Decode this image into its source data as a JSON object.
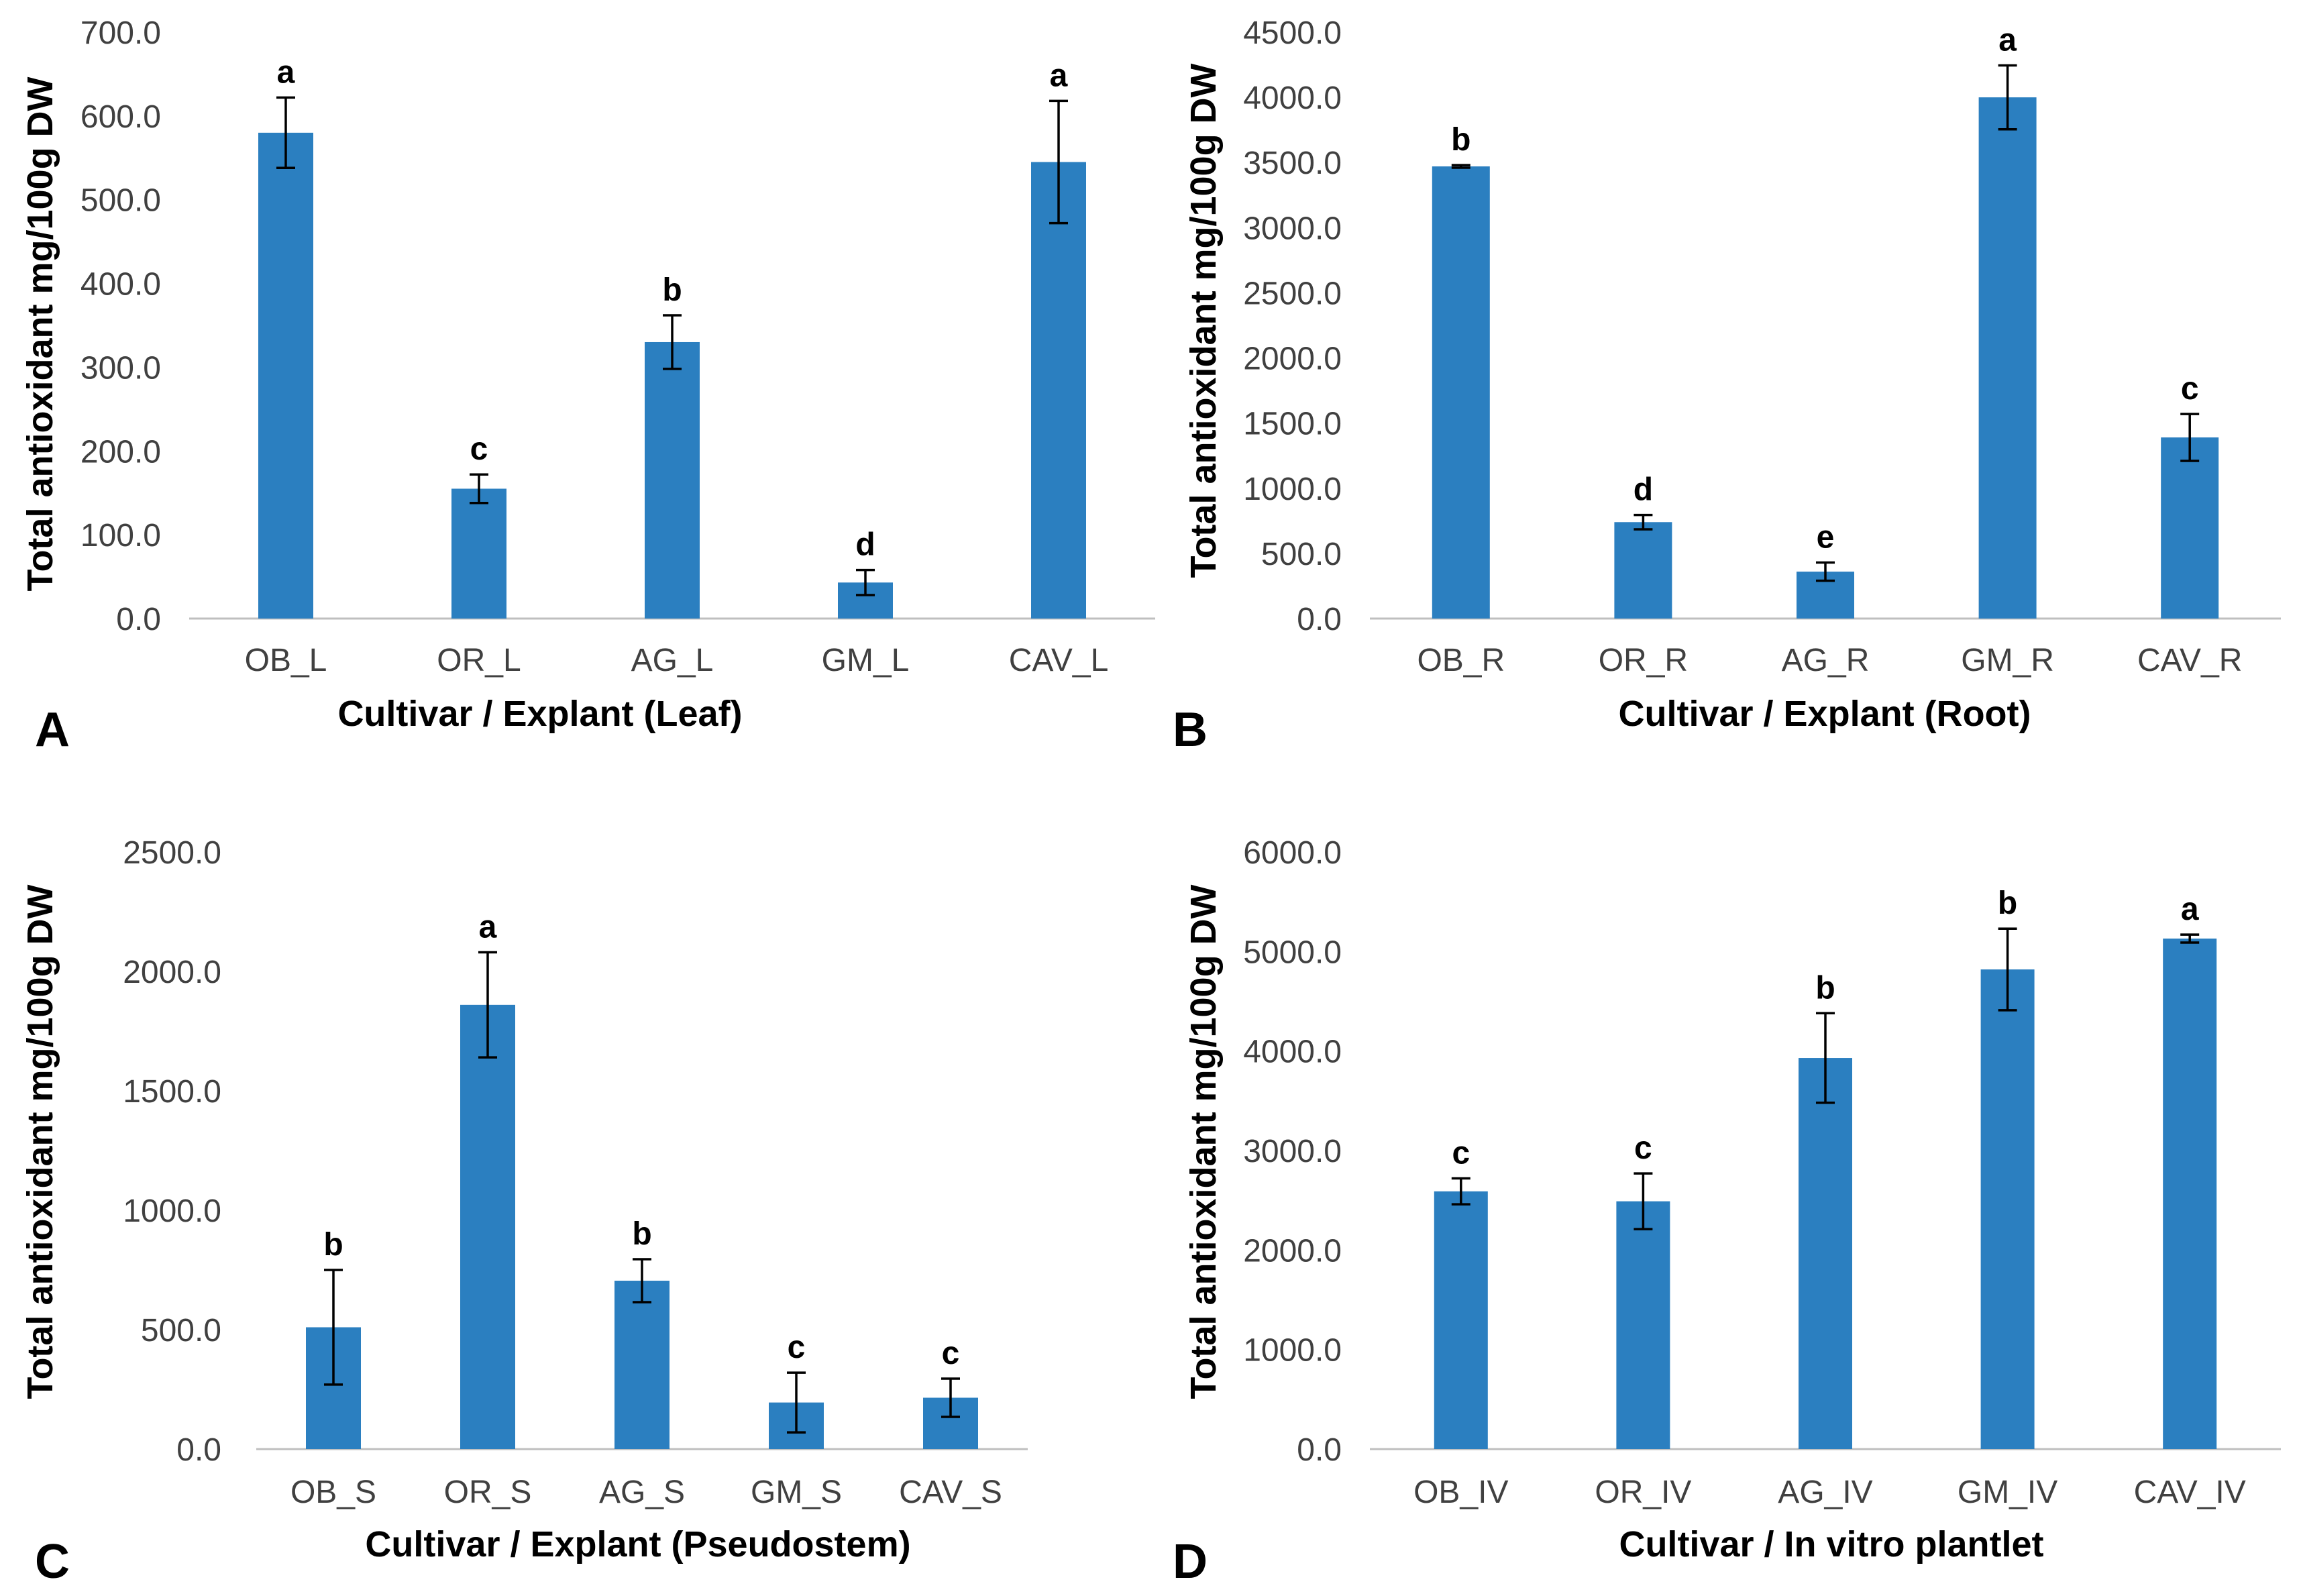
{
  "figure": {
    "colors": {
      "bar": "#2b7fc0",
      "axis": "#bfbfbf",
      "error_bar": "#000000"
    }
  },
  "chart_data": [
    {
      "panel": "A",
      "type": "bar",
      "categories": [
        "OB_L",
        "OR_L",
        "AG_L",
        "GM_L",
        "CAV_L"
      ],
      "values": [
        580,
        155,
        330,
        43,
        545
      ],
      "errors": [
        42,
        17,
        32,
        15,
        73
      ],
      "significance": [
        "a",
        "c",
        "b",
        "d",
        "a"
      ],
      "xlabel": "Cultivar / Explant (Leaf)",
      "ylabel": "Total antioxidant mg/100g DW",
      "ylim": [
        0,
        700
      ],
      "yticks": [
        "0.0",
        "100.0",
        "200.0",
        "300.0",
        "400.0",
        "500.0",
        "600.0",
        "700.0"
      ],
      "grid": false,
      "legend": "none"
    },
    {
      "panel": "B",
      "type": "bar",
      "categories": [
        "OB_R",
        "OR_R",
        "AG_R",
        "GM_R",
        "CAV_R"
      ],
      "values": [
        3470,
        740,
        360,
        4000,
        1390
      ],
      "errors": [
        10,
        55,
        70,
        245,
        180
      ],
      "significance": [
        "b",
        "d",
        "e",
        "a",
        "c"
      ],
      "xlabel": "Cultivar / Explant (Root)",
      "ylabel": "Total antioxidant mg/100g DW",
      "ylim": [
        0,
        4500
      ],
      "yticks": [
        "0.0",
        "500.0",
        "1000.0",
        "1500.0",
        "2000.0",
        "2500.0",
        "3000.0",
        "3500.0",
        "4000.0",
        "4500.0"
      ],
      "grid": false,
      "legend": "none"
    },
    {
      "panel": "C",
      "type": "bar",
      "categories": [
        "OB_S",
        "OR_S",
        "AG_S",
        "GM_S",
        "CAV_S"
      ],
      "values": [
        510,
        1860,
        705,
        195,
        215
      ],
      "errors": [
        240,
        220,
        90,
        125,
        80
      ],
      "significance": [
        "b",
        "a",
        "b",
        "c",
        "c"
      ],
      "xlabel": "Cultivar / Explant (Pseudostem)",
      "ylabel": "Total antioxidant mg/100g DW",
      "ylim": [
        0,
        2500
      ],
      "yticks": [
        "0.0",
        "500.0",
        "1000.0",
        "1500.0",
        "2000.0",
        "2500.0"
      ],
      "grid": false,
      "legend": "none"
    },
    {
      "panel": "D",
      "type": "bar",
      "categories": [
        "OB_IV",
        "OR_IV",
        "AG_IV",
        "GM_IV",
        "CAV_IV"
      ],
      "values": [
        2590,
        2490,
        3930,
        4820,
        5130
      ],
      "errors": [
        130,
        280,
        450,
        410,
        40
      ],
      "significance": [
        "c",
        "c",
        "b",
        "b",
        "a"
      ],
      "xlabel": "Cultivar / In vitro plantlet",
      "ylabel": "Total antioxidant mg/100g DW",
      "ylim": [
        0,
        6000
      ],
      "yticks": [
        "0.0",
        "1000.0",
        "2000.0",
        "3000.0",
        "4000.0",
        "5000.0",
        "6000.0"
      ],
      "grid": false,
      "legend": "none"
    }
  ]
}
